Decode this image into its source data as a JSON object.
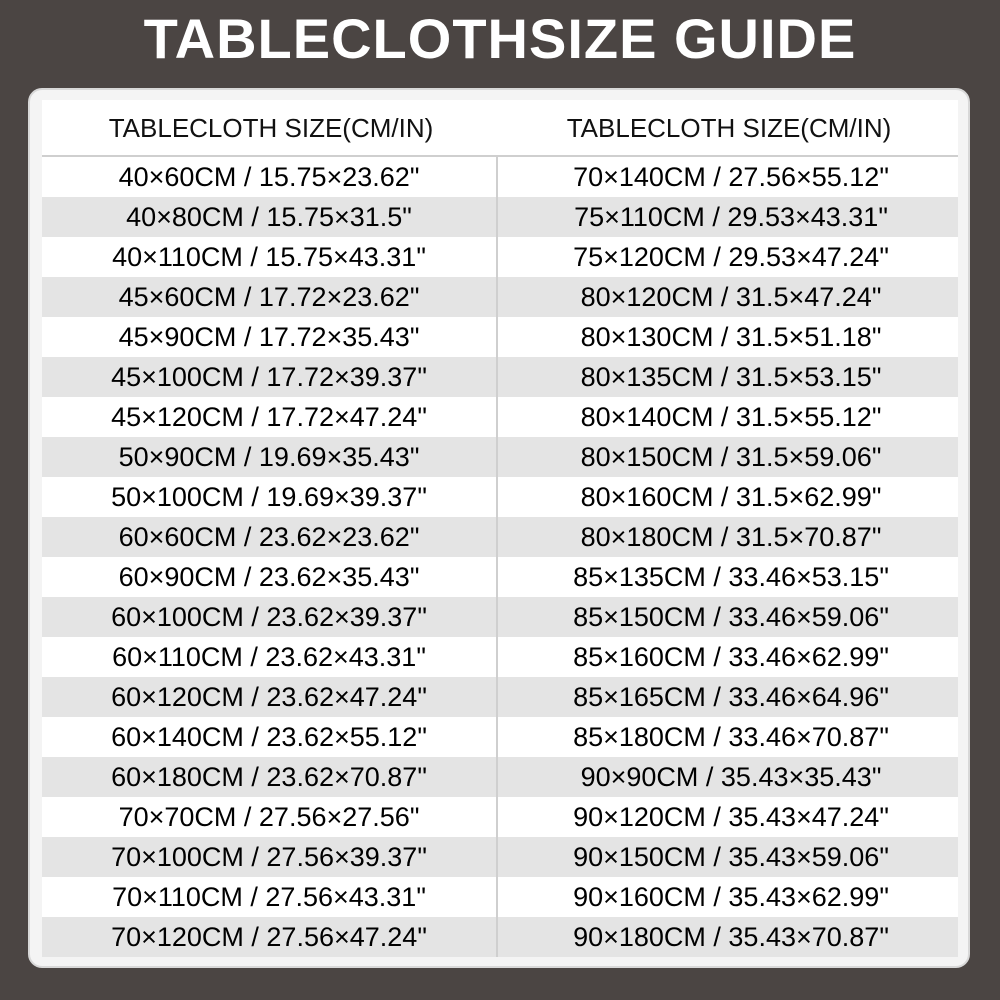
{
  "title": "TABLECLOTHSIZE GUIDE",
  "table": {
    "headers": [
      "TABLECLOTH SIZE(CM/IN)",
      "TABLECLOTH SIZE(CM/IN)"
    ],
    "rows": [
      [
        "40×60CM / 15.75×23.62\"",
        "70×140CM / 27.56×55.12\""
      ],
      [
        "40×80CM / 15.75×31.5\"",
        "75×110CM / 29.53×43.31\""
      ],
      [
        "40×110CM / 15.75×43.31\"",
        "75×120CM / 29.53×47.24\""
      ],
      [
        "45×60CM / 17.72×23.62\"",
        "80×120CM / 31.5×47.24\""
      ],
      [
        "45×90CM / 17.72×35.43\"",
        "80×130CM / 31.5×51.18\""
      ],
      [
        "45×100CM / 17.72×39.37\"",
        "80×135CM / 31.5×53.15\""
      ],
      [
        "45×120CM / 17.72×47.24\"",
        "80×140CM / 31.5×55.12\""
      ],
      [
        "50×90CM / 19.69×35.43\"",
        "80×150CM / 31.5×59.06\""
      ],
      [
        "50×100CM / 19.69×39.37\"",
        "80×160CM / 31.5×62.99\""
      ],
      [
        "60×60CM / 23.62×23.62\"",
        "80×180CM / 31.5×70.87\""
      ],
      [
        "60×90CM / 23.62×35.43\"",
        "85×135CM / 33.46×53.15\""
      ],
      [
        "60×100CM / 23.62×39.37\"",
        "85×150CM / 33.46×59.06\""
      ],
      [
        "60×110CM / 23.62×43.31\"",
        "85×160CM / 33.46×62.99\""
      ],
      [
        "60×120CM / 23.62×47.24\"",
        "85×165CM / 33.46×64.96\""
      ],
      [
        "60×140CM / 23.62×55.12\"",
        "85×180CM / 33.46×70.87\""
      ],
      [
        "60×180CM / 23.62×70.87\"",
        "90×90CM / 35.43×35.43\""
      ],
      [
        "70×70CM / 27.56×27.56\"",
        "90×120CM / 35.43×47.24\""
      ],
      [
        "70×100CM / 27.56×39.37\"",
        "90×150CM / 35.43×59.06\""
      ],
      [
        "70×110CM / 27.56×43.31\"",
        "90×160CM / 35.43×62.99\""
      ],
      [
        "70×120CM / 27.56×47.24\"",
        "90×180CM / 35.43×70.87\""
      ]
    ]
  }
}
